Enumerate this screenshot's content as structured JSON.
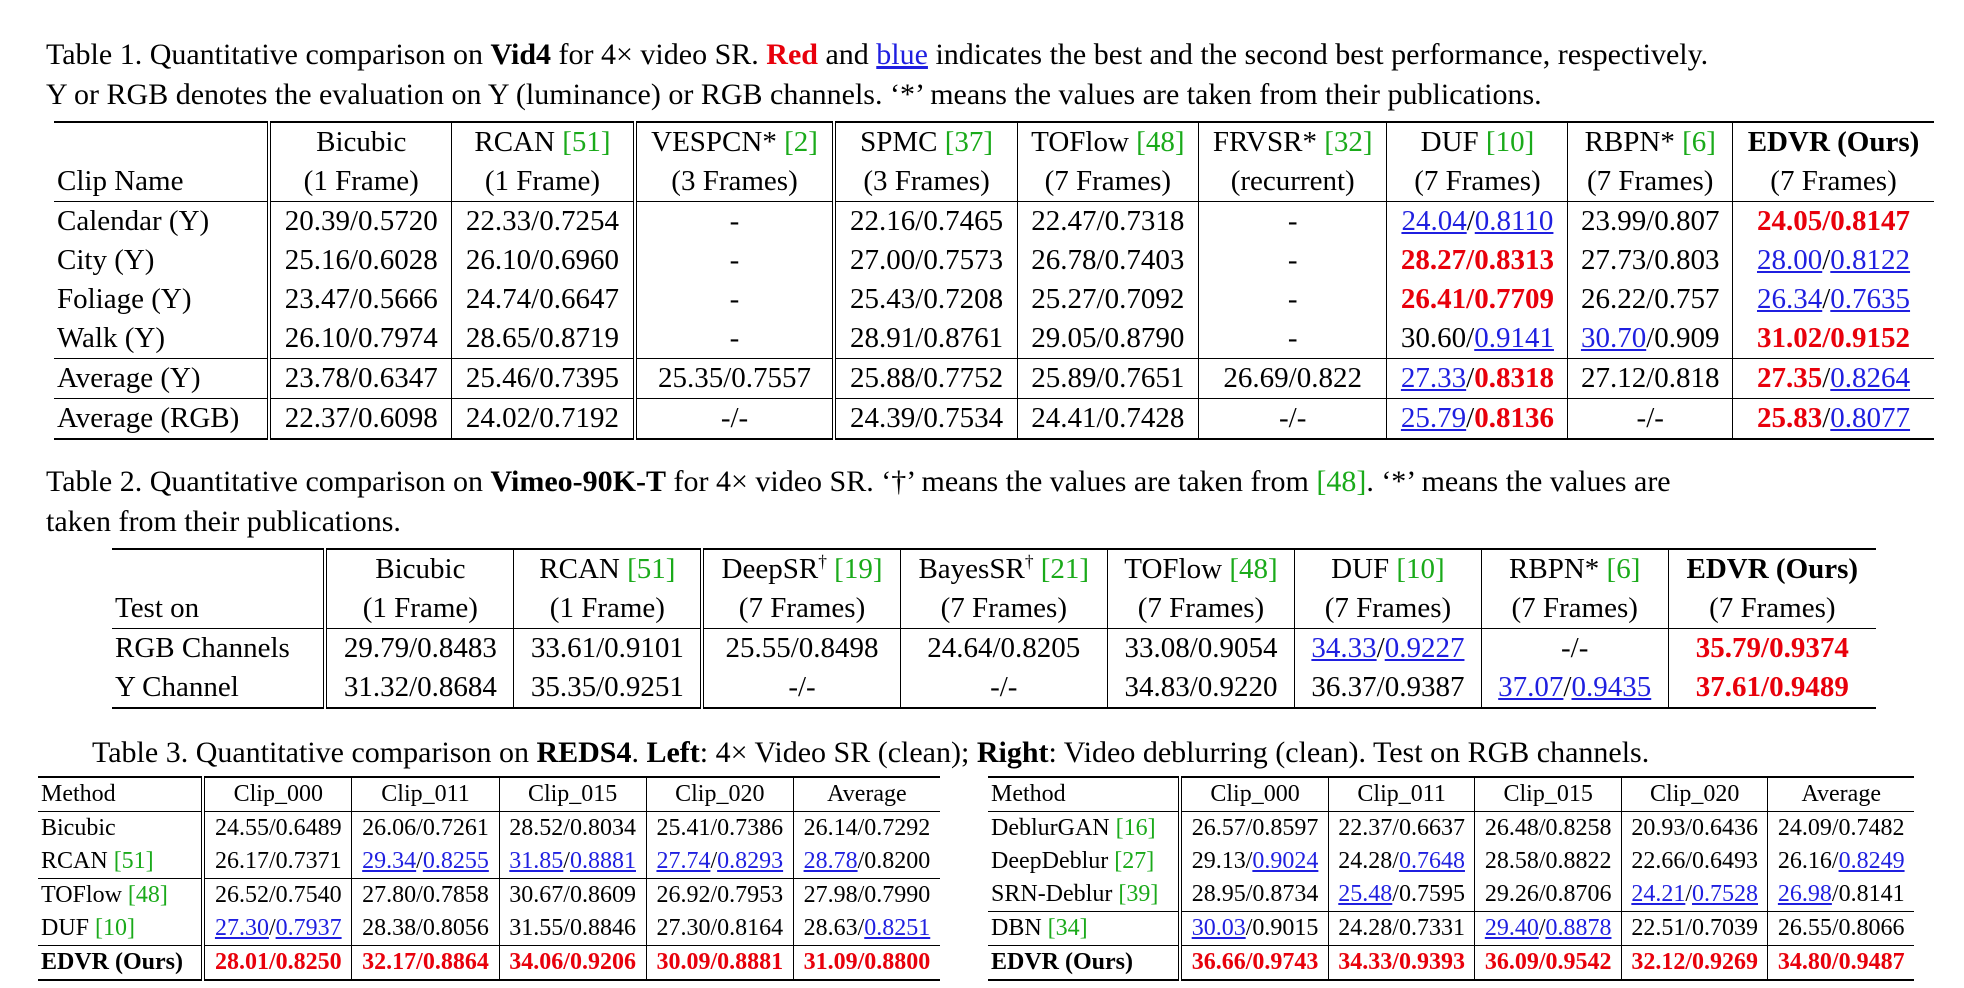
{
  "t1": {
    "cap1_a": "Table 1. Quantitative comparison on ",
    "cap1_b": "Vid4",
    "cap1_c": " for 4× video SR. ",
    "cap1_red": "Red",
    "cap1_d": " and ",
    "cap1_blue": "blue",
    "cap1_e": " indicates the best and the second best performance, respectively.",
    "cap2": "Y or RGB denotes the evaluation on Y (luminance) or RGB channels. ‘*’ means the values are taken from their publications.",
    "head1": [
      "",
      "Bicubic",
      "RCAN ",
      "VESPCN* ",
      "SPMC ",
      "TOFlow ",
      "FRVSR* ",
      "DUF ",
      "RBPN* ",
      "EDVR (Ours)"
    ],
    "refs": [
      "",
      "",
      "[51]",
      "[2]",
      "[37]",
      "[48]",
      "[32]",
      "[10]",
      "[6]",
      ""
    ],
    "head2": [
      "Clip Name",
      "(1 Frame)",
      "(1 Frame)",
      "(3 Frames)",
      "(3 Frames)",
      "(7 Frames)",
      "(recurrent)",
      "(7 Frames)",
      "(7 Frames)",
      "(7 Frames)"
    ],
    "rows": [
      [
        "Calendar (Y)",
        "20.39/0.5720",
        "22.33/0.7254",
        "-",
        "22.16/0.7465",
        "22.47/0.7318",
        "-",
        "24.04/0.8110",
        "23.99/0.807",
        "24.05/0.8147"
      ],
      [
        "City (Y)",
        "25.16/0.6028",
        "26.10/0.6960",
        "-",
        "27.00/0.7573",
        "26.78/0.7403",
        "-",
        "28.27/0.8313",
        "27.73/0.803",
        "28.00/0.8122"
      ],
      [
        "Foliage (Y)",
        "23.47/0.5666",
        "24.74/0.6647",
        "-",
        "25.43/0.7208",
        "25.27/0.7092",
        "-",
        "26.41/0.7709",
        "26.22/0.757",
        "26.34/0.7635"
      ],
      [
        "Walk (Y)",
        "26.10/0.7974",
        "28.65/0.8719",
        "-",
        "28.91/0.8761",
        "29.05/0.8790",
        "-",
        "30.60/0.9141",
        "30.70/0.909",
        "31.02/0.9152"
      ],
      [
        "Average (Y)",
        "23.78/0.6347",
        "25.46/0.7395",
        "25.35/0.7557",
        "25.88/0.7752",
        "25.89/0.7651",
        "26.69/0.822",
        "27.33/0.8318",
        "27.12/0.818",
        "27.35/0.8264"
      ],
      [
        "Average (RGB)",
        "22.37/0.6098",
        "24.02/0.7192",
        "-/-",
        "24.39/0.7534",
        "24.41/0.7428",
        "-/-",
        "25.79/0.8136",
        "-/-",
        "25.83/0.8077"
      ]
    ]
  },
  "t2": {
    "cap1_a": "Table 2. Quantitative comparison on ",
    "cap1_b": "Vimeo-90K-T",
    "cap1_c": " for 4× video SR. ‘†’ means the values are taken from ",
    "cap1_ref": "[48]",
    "cap1_d": ". ‘*’ means the values are",
    "cap2": "taken from their publications.",
    "head1": [
      "",
      "Bicubic",
      "RCAN ",
      "DeepSR",
      "BayesSR",
      "TOFlow ",
      "DUF ",
      "RBPN* ",
      "EDVR (Ours)"
    ],
    "refs": [
      "",
      "",
      "[51]",
      "[19]",
      "[21]",
      "[48]",
      "[10]",
      "[6]",
      ""
    ],
    "dagger": "†",
    "head2": [
      "Test on",
      "(1 Frame)",
      "(1 Frame)",
      "(7 Frames)",
      "(7 Frames)",
      "(7 Frames)",
      "(7 Frames)",
      "(7 Frames)",
      "(7 Frames)"
    ],
    "rows": [
      [
        "RGB Channels",
        "29.79/0.8483",
        "33.61/0.9101",
        "25.55/0.8498",
        "24.64/0.8205",
        "33.08/0.9054",
        "34.33/0.9227",
        "-/-",
        "35.79/0.9374"
      ],
      [
        "Y Channel",
        "31.32/0.8684",
        "35.35/0.9251",
        "-/-",
        "-/-",
        "34.83/0.9220",
        "36.37/0.9387",
        "37.07/0.9435",
        "37.61/0.9489"
      ]
    ]
  },
  "t3": {
    "cap_a": "Table 3. Quantitative comparison on ",
    "cap_b": "REDS4",
    "cap_c": ". ",
    "cap_d": "Left",
    "cap_e": ": 4× Video SR (clean); ",
    "cap_f": "Right",
    "cap_g": ": Video deblurring (clean). Test on RGB channels.",
    "head": [
      "Method",
      "Clip_000",
      "Clip_011",
      "Clip_015",
      "Clip_020",
      "Average"
    ],
    "left_rows": [
      [
        "Bicubic",
        "",
        "24.55/0.6489",
        "26.06/0.7261",
        "28.52/0.8034",
        "25.41/0.7386",
        "26.14/0.7292"
      ],
      [
        "RCAN ",
        "[51]",
        "26.17/0.7371",
        "29.34/0.8255",
        "31.85/0.8881",
        "27.74/0.8293",
        "28.78/0.8200"
      ],
      [
        "TOFlow ",
        "[48]",
        "26.52/0.7540",
        "27.80/0.7858",
        "30.67/0.8609",
        "26.92/0.7953",
        "27.98/0.7990"
      ],
      [
        "DUF ",
        "[10]",
        "27.30/0.7937",
        "28.38/0.8056",
        "31.55/0.8846",
        "27.30/0.8164",
        "28.63/0.8251"
      ],
      [
        "EDVR (Ours)",
        "",
        "28.01/0.8250",
        "32.17/0.8864",
        "34.06/0.9206",
        "30.09/0.8881",
        "31.09/0.8800"
      ]
    ],
    "right_rows": [
      [
        "DeblurGAN ",
        "[16]",
        "26.57/0.8597",
        "22.37/0.6637",
        "26.48/0.8258",
        "20.93/0.6436",
        "24.09/0.7482"
      ],
      [
        "DeepDeblur ",
        "[27]",
        "29.13/0.9024",
        "24.28/0.7648",
        "28.58/0.8822",
        "22.66/0.6493",
        "26.16/0.8249"
      ],
      [
        "SRN-Deblur ",
        "[39]",
        "28.95/0.8734",
        "25.48/0.7595",
        "29.26/0.8706",
        "24.21/0.7528",
        "26.98/0.8141"
      ],
      [
        "DBN ",
        "[34]",
        "30.03/0.9015",
        "24.28/0.7331",
        "29.40/0.8878",
        "22.51/0.7039",
        "26.55/0.8066"
      ],
      [
        "EDVR (Ours)",
        "",
        "36.66/0.9743",
        "34.33/0.9393",
        "36.09/0.9542",
        "32.12/0.9269",
        "34.80/0.9487"
      ]
    ]
  },
  "colors": {
    "best": "#e8000b",
    "second": "#1f1fe0",
    "ref": "#1aaa1a"
  }
}
